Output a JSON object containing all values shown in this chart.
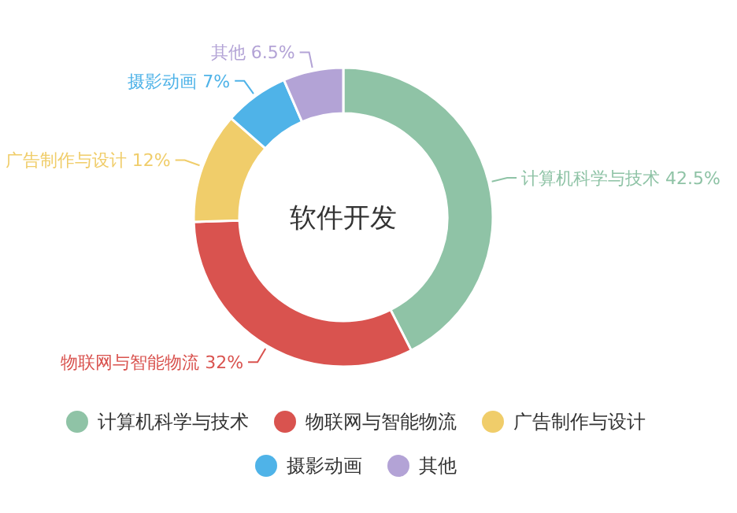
{
  "chart_data": {
    "type": "donut",
    "title": "软件开发",
    "categories": [
      "计算机科学与技术",
      "物联网与智能物流",
      "广告制作与设计",
      "摄影动画",
      "其他"
    ],
    "values": [
      42.5,
      32,
      12,
      7,
      6.5
    ],
    "value_labels": [
      "42.5%",
      "32%",
      "12%",
      "7%",
      "6.5%"
    ],
    "colors": [
      "#8fc3a6",
      "#d9534f",
      "#f0cd6a",
      "#4fb3e8",
      "#b3a3d6"
    ],
    "legend": "bottom"
  }
}
